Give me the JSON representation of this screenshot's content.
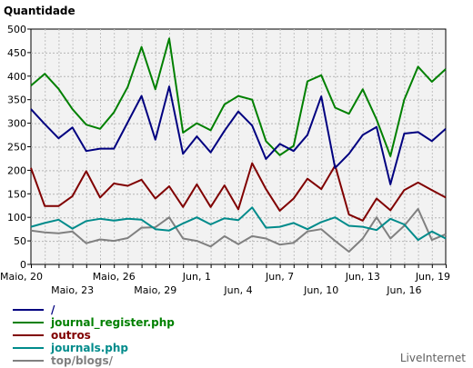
{
  "chart_data": {
    "type": "line",
    "ylabel": "Quantidade",
    "ylim": [
      0,
      500
    ],
    "yticks": [
      0,
      50,
      100,
      150,
      200,
      250,
      300,
      350,
      400,
      450,
      500
    ],
    "grid": true,
    "legend_position": "bottom-left",
    "x_count": 31,
    "x_labels_row1": [
      {
        "index": 0,
        "label": "Maio, 20"
      },
      {
        "index": 6,
        "label": "Maio, 26"
      },
      {
        "index": 12,
        "label": "Jun, 1"
      },
      {
        "index": 18,
        "label": "Jun, 7"
      },
      {
        "index": 24,
        "label": "Jun, 13"
      },
      {
        "index": 30,
        "label": "Jun, 19"
      }
    ],
    "x_labels_row2": [
      {
        "index": 3,
        "label": "Maio, 23"
      },
      {
        "index": 9,
        "label": "Maio, 29"
      },
      {
        "index": 15,
        "label": "Jun, 4"
      },
      {
        "index": 21,
        "label": "Jun, 10"
      },
      {
        "index": 27,
        "label": "Jun, 16"
      }
    ],
    "series": [
      {
        "name": "/",
        "color": "#000080",
        "values": [
          330,
          298,
          268,
          291,
          241,
          246,
          246,
          302,
          358,
          265,
          378,
          235,
          272,
          238,
          284,
          325,
          295,
          224,
          256,
          241,
          275,
          357,
          205,
          235,
          275,
          292,
          170,
          278,
          281,
          262,
          288
        ]
      },
      {
        "name": "journal_register.php",
        "color": "#008000",
        "values": [
          380,
          405,
          373,
          330,
          297,
          288,
          323,
          377,
          462,
          372,
          480,
          280,
          300,
          285,
          340,
          358,
          350,
          262,
          232,
          252,
          389,
          402,
          333,
          320,
          372,
          308,
          230,
          350,
          420,
          388,
          415
        ]
      },
      {
        "name": "outros",
        "color": "#800000",
        "values": [
          205,
          124,
          124,
          145,
          198,
          142,
          172,
          167,
          180,
          140,
          166,
          122,
          170,
          122,
          168,
          117,
          215,
          160,
          114,
          140,
          182,
          160,
          210,
          106,
          93,
          140,
          115,
          158,
          174,
          158,
          142
        ]
      },
      {
        "name": "journals.php",
        "color": "#008b8b",
        "values": [
          80,
          88,
          95,
          76,
          92,
          97,
          93,
          97,
          95,
          75,
          72,
          87,
          100,
          85,
          98,
          94,
          121,
          78,
          80,
          88,
          75,
          90,
          100,
          82,
          80,
          73,
          97,
          85,
          52,
          70,
          55
        ]
      },
      {
        "name": "top/blogs/",
        "color": "#808080",
        "values": [
          72,
          68,
          66,
          70,
          45,
          53,
          50,
          56,
          78,
          79,
          100,
          55,
          50,
          38,
          60,
          43,
          60,
          55,
          42,
          46,
          70,
          75,
          50,
          27,
          55,
          100,
          55,
          82,
          118,
          52,
          64
        ]
      }
    ]
  },
  "brand": "LiveInternet"
}
